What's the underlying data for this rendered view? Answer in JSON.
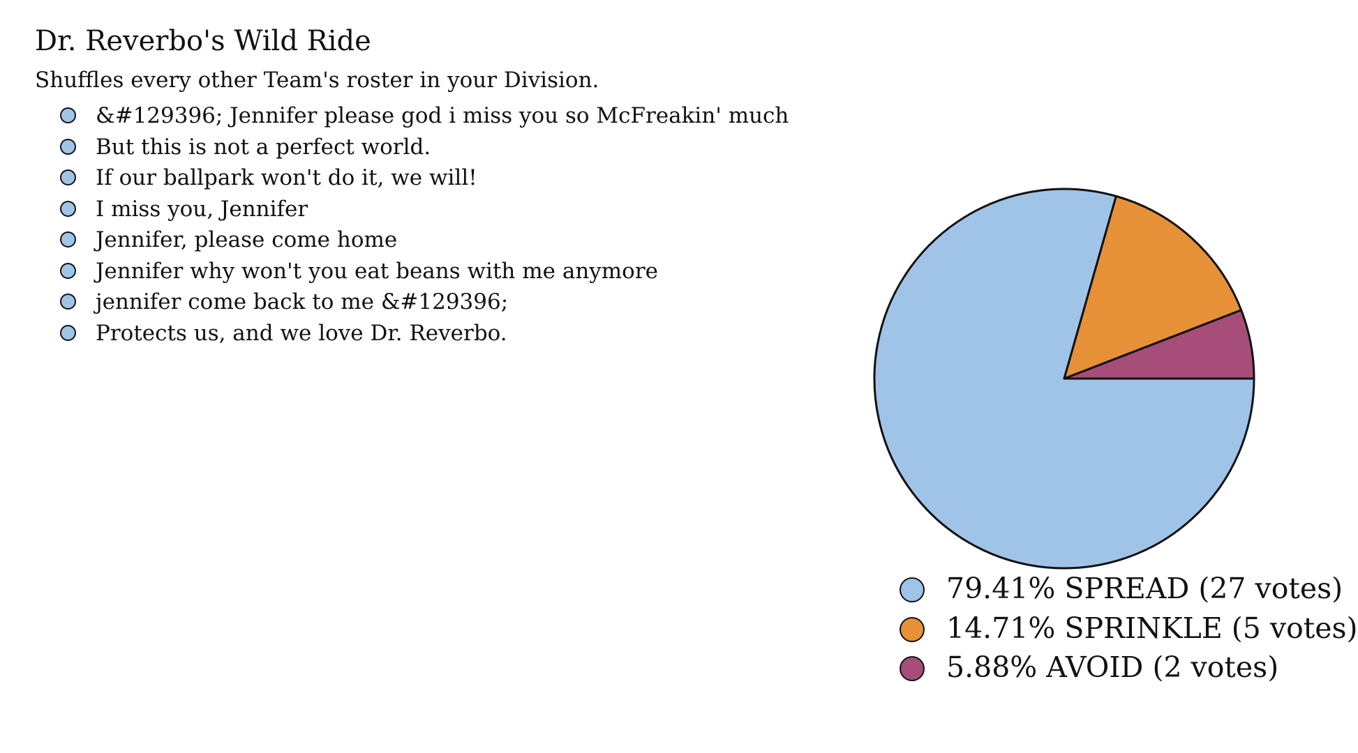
{
  "header": {
    "title": "Dr. Reverbo's Wild Ride",
    "subtitle": "Shuffles every other Team's roster in your Division."
  },
  "effects": [
    "&#129396; Jennifer please god i miss you so McFreakin' much",
    "But this is not a perfect world.",
    "If our ballpark won't do it, we will!",
    "I miss you, Jennifer",
    "Jennifer, please come home",
    "Jennifer why won't you eat beans with me anymore",
    "jennifer come back to me &#129396;",
    "Protects us, and we love Dr. Reverbo."
  ],
  "colors": {
    "bullet": "#a0c4e8",
    "outline": "#111111",
    "text": "#111111",
    "background": "#ffffff"
  },
  "chart_data": {
    "type": "pie",
    "start": "3 o'clock, clockwise",
    "slices": [
      {
        "label": "79.41% SPREAD (27 votes)",
        "name": "SPREAD",
        "percent": 79.41,
        "votes": 27,
        "color": "#a0c4e8"
      },
      {
        "label": "14.71% SPRINKLE (5 votes)",
        "name": "SPRINKLE",
        "percent": 14.71,
        "votes": 5,
        "color": "#e69138"
      },
      {
        "label": "5.88% AVOID (2 votes)",
        "name": "AVOID",
        "percent": 5.88,
        "votes": 2,
        "color": "#a64d79"
      }
    ],
    "legend_placement": "bottom"
  }
}
